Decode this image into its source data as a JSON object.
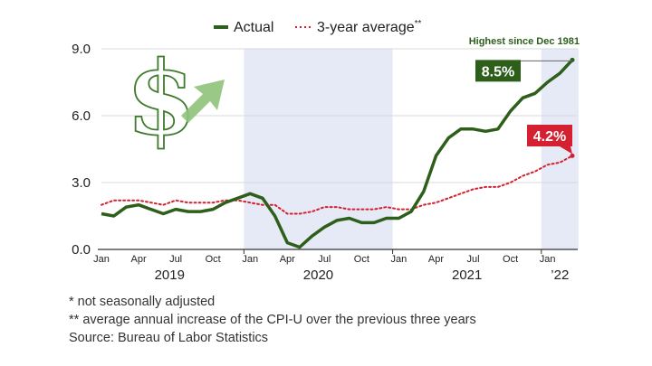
{
  "colors": {
    "actual": "#2d5f1a",
    "average": "#d42030",
    "shade": "#e6e9f6",
    "grid": "#d9d9d9",
    "icon": "#3e7a2c",
    "arrow": "#8fc27a"
  },
  "legend": {
    "actual_label": "Actual",
    "average_label": "3-year average",
    "average_marker": "**"
  },
  "annotations": {
    "highest": "Highest since Dec 1981",
    "actual_last": "8.5%",
    "average_last": "4.2%"
  },
  "icons": {
    "dollar": "dollar-icon",
    "arrow": "up-arrow-icon"
  },
  "footnotes": {
    "note1": "*   not seasonally adjusted",
    "note2": "** average annual increase of the CPI-U over the previous three years",
    "source": "Source: Bureau of Labor Statistics"
  },
  "chart_data": {
    "type": "line",
    "title": "",
    "xlabel": "",
    "ylabel": "",
    "ylim": [
      0,
      9
    ],
    "yticks": [
      "0.0",
      "3.0",
      "6.0",
      "9.0"
    ],
    "grid": true,
    "legend_position": "top",
    "x": [
      "2019-01",
      "2019-02",
      "2019-03",
      "2019-04",
      "2019-05",
      "2019-06",
      "2019-07",
      "2019-08",
      "2019-09",
      "2019-10",
      "2019-11",
      "2019-12",
      "2020-01",
      "2020-02",
      "2020-03",
      "2020-04",
      "2020-05",
      "2020-06",
      "2020-07",
      "2020-08",
      "2020-09",
      "2020-10",
      "2020-11",
      "2020-12",
      "2021-01",
      "2021-02",
      "2021-03",
      "2021-04",
      "2021-05",
      "2021-06",
      "2021-07",
      "2021-08",
      "2021-09",
      "2021-10",
      "2021-11",
      "2021-12",
      "2022-01",
      "2022-02",
      "2022-03"
    ],
    "x_tick_labels": [
      {
        "x": "2019-01",
        "label": "Jan"
      },
      {
        "x": "2019-04",
        "label": "Apr"
      },
      {
        "x": "2019-07",
        "label": "Jul"
      },
      {
        "x": "2019-10",
        "label": "Oct"
      },
      {
        "x": "2020-01",
        "label": "Jan"
      },
      {
        "x": "2020-04",
        "label": "Apr"
      },
      {
        "x": "2020-07",
        "label": "Jul"
      },
      {
        "x": "2020-10",
        "label": "Oct"
      },
      {
        "x": "2021-01",
        "label": "Jan"
      },
      {
        "x": "2021-04",
        "label": "Apr"
      },
      {
        "x": "2021-07",
        "label": "Jul"
      },
      {
        "x": "2021-10",
        "label": "Oct"
      },
      {
        "x": "2022-01",
        "label": "Jan"
      }
    ],
    "year_labels": [
      {
        "label": "2019",
        "from": "2019-01",
        "to": "2019-12"
      },
      {
        "label": "2020",
        "from": "2020-01",
        "to": "2020-12"
      },
      {
        "label": "2021",
        "from": "2021-01",
        "to": "2021-12"
      },
      {
        "label": "’22",
        "from": "2022-01",
        "to": "2022-03"
      }
    ],
    "shaded_ranges": [
      {
        "from": "2020-01",
        "to": "2020-12"
      },
      {
        "from": "2022-01",
        "to": "2022-03"
      }
    ],
    "series": [
      {
        "name": "Actual",
        "style": "solid",
        "values": [
          1.6,
          1.5,
          1.9,
          2.0,
          1.8,
          1.6,
          1.8,
          1.7,
          1.7,
          1.8,
          2.1,
          2.3,
          2.5,
          2.3,
          1.5,
          0.3,
          0.1,
          0.6,
          1.0,
          1.3,
          1.4,
          1.2,
          1.2,
          1.4,
          1.4,
          1.7,
          2.6,
          4.2,
          5.0,
          5.4,
          5.4,
          5.3,
          5.4,
          6.2,
          6.8,
          7.0,
          7.5,
          7.9,
          8.5
        ]
      },
      {
        "name": "3-year average",
        "style": "dotted",
        "values": [
          2.0,
          2.2,
          2.2,
          2.2,
          2.1,
          2.0,
          2.2,
          2.1,
          2.1,
          2.1,
          2.2,
          2.2,
          2.1,
          2.0,
          2.0,
          1.6,
          1.6,
          1.7,
          1.9,
          1.9,
          1.8,
          1.8,
          1.8,
          1.9,
          1.8,
          1.8,
          2.0,
          2.1,
          2.3,
          2.5,
          2.7,
          2.8,
          2.8,
          3.0,
          3.3,
          3.5,
          3.8,
          3.9,
          4.2
        ]
      }
    ]
  }
}
